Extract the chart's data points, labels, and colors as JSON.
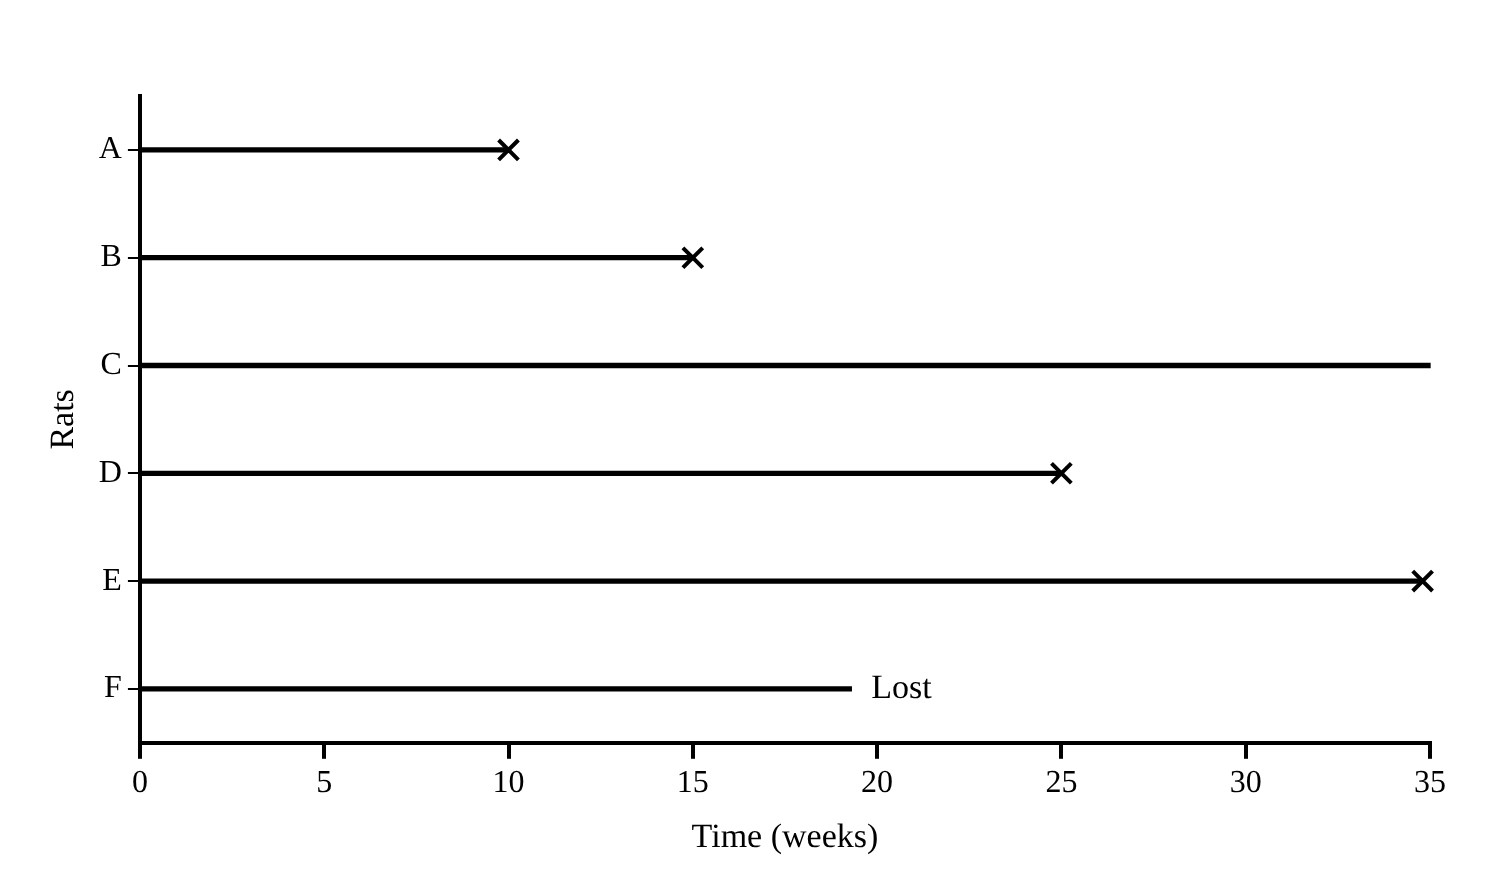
{
  "chart_data": {
    "type": "bar",
    "orientation": "horizontal",
    "xlabel": "Time (weeks)",
    "ylabel": "Rats",
    "categories": [
      "A",
      "B",
      "C",
      "D",
      "E",
      "F"
    ],
    "series": [
      {
        "color": "#000000",
        "values": [
          10,
          15,
          35,
          25,
          34.8,
          19.3
        ]
      },
      {
        "type": "scatter",
        "marker": "cross",
        "color": "#000000",
        "values": [
          10,
          15,
          null,
          25,
          34.8,
          null
        ]
      }
    ],
    "xlim": [
      0,
      35
    ],
    "xticks": [
      0,
      5,
      10,
      15,
      20,
      25,
      30,
      35
    ],
    "grid": false,
    "legend": false,
    "annotations": [
      {
        "text": "Lost",
        "x": 19.3,
        "y": "F"
      }
    ]
  }
}
